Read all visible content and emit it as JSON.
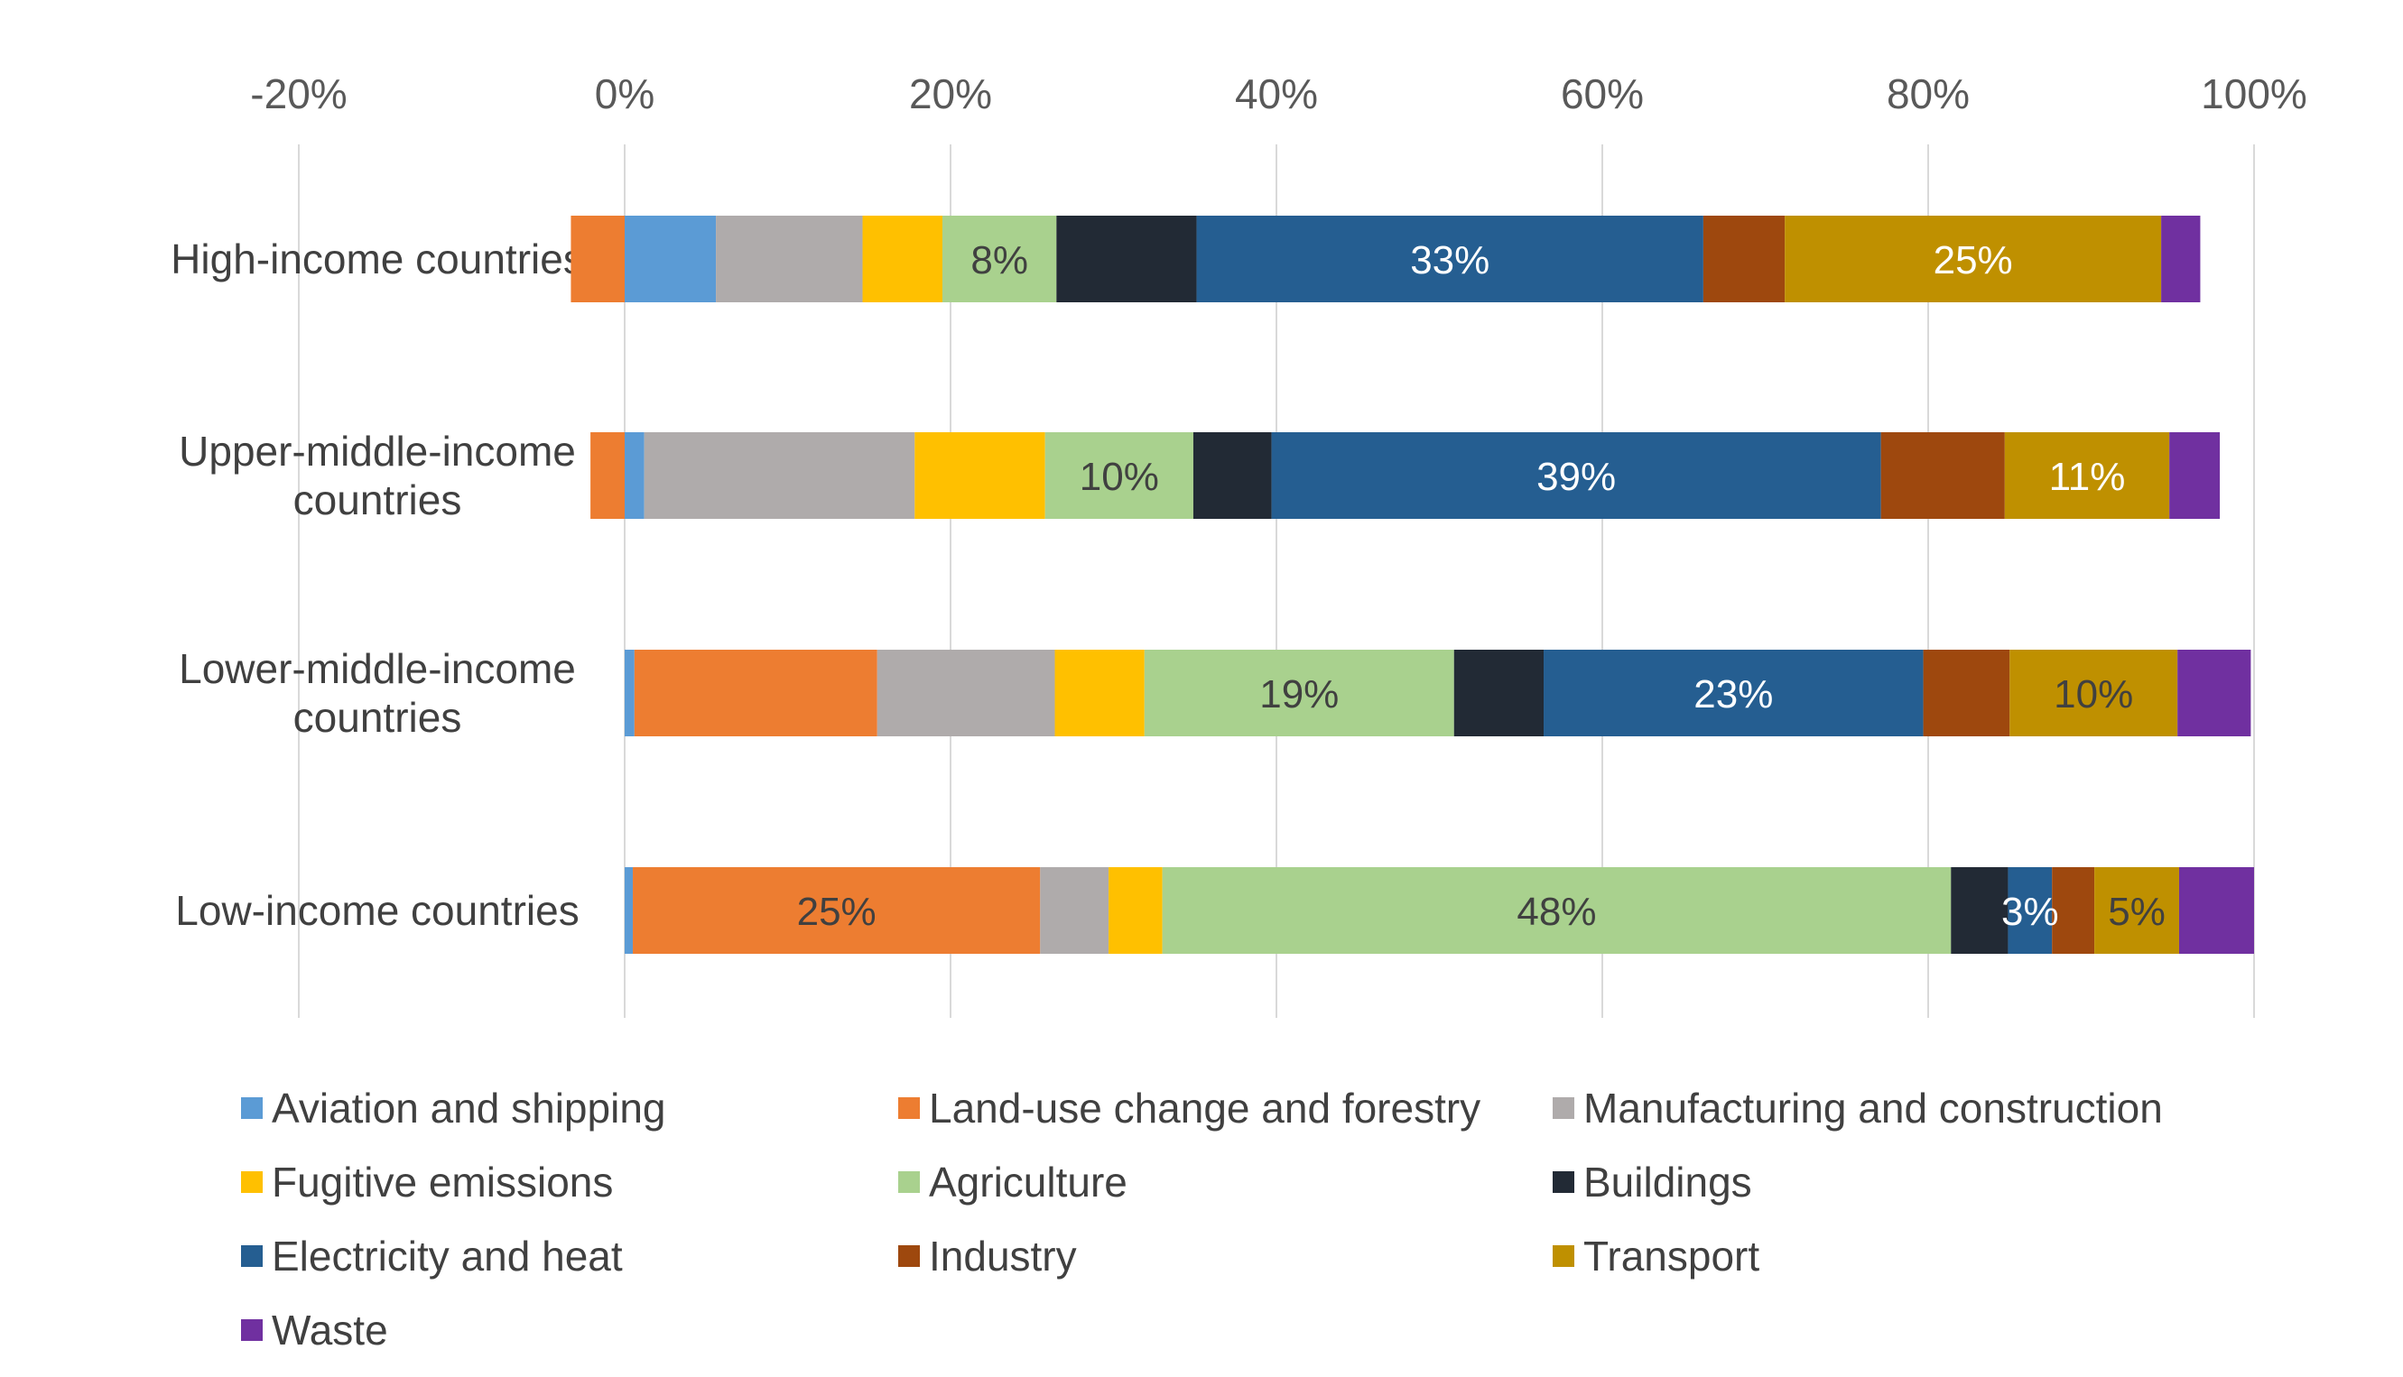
{
  "chart_data": {
    "type": "bar",
    "orientation": "horizontal",
    "stacked": true,
    "xlim": [
      -0.2,
      1.0
    ],
    "x_ticks": [
      -0.2,
      0,
      0.2,
      0.4,
      0.6,
      0.8,
      1.0
    ],
    "x_tick_labels": [
      "-20%",
      "0%",
      "20%",
      "40%",
      "60%",
      "80%",
      "100%"
    ],
    "x_axis_position": "top",
    "grid": true,
    "legend_position": "bottom",
    "categories": [
      [
        "High-income countries"
      ],
      [
        "Upper-middle-income",
        "countries"
      ],
      [
        "Lower-middle-income",
        "countries"
      ],
      [
        "Low-income countries"
      ]
    ],
    "series": [
      {
        "name": "Aviation and shipping",
        "color": "#5b9bd5",
        "values": [
          0.056,
          0.012,
          0.006,
          0.005
        ]
      },
      {
        "name": "Land-use change and forestry",
        "color": "#ed7d31",
        "values": [
          -0.033,
          -0.021,
          0.149,
          0.25
        ]
      },
      {
        "name": "Manufacturing and construction",
        "color": "#afabab",
        "values": [
          0.09,
          0.166,
          0.109,
          0.042
        ]
      },
      {
        "name": "Fugitive emissions",
        "color": "#ffc000",
        "values": [
          0.049,
          0.08,
          0.055,
          0.033
        ]
      },
      {
        "name": "Agriculture",
        "color": "#a9d18e",
        "values": [
          0.07,
          0.091,
          0.19,
          0.484
        ]
      },
      {
        "name": "Buildings",
        "color": "#222a35",
        "values": [
          0.086,
          0.048,
          0.055,
          0.035
        ]
      },
      {
        "name": "Electricity and heat",
        "color": "#255e91",
        "values": [
          0.311,
          0.374,
          0.233,
          0.027
        ]
      },
      {
        "name": "Industry",
        "color": "#9e480e",
        "values": [
          0.05,
          0.076,
          0.053,
          0.026
        ]
      },
      {
        "name": "Transport",
        "color": "#bf9000",
        "values": [
          0.231,
          0.101,
          0.103,
          0.052
        ]
      },
      {
        "name": "Waste",
        "color": "#7030a0",
        "values": [
          0.024,
          0.031,
          0.045,
          0.046
        ]
      }
    ],
    "data_labels": [
      {
        "category": 0,
        "series": "Agriculture",
        "text": "8%"
      },
      {
        "category": 0,
        "series": "Electricity and heat",
        "text": "33%"
      },
      {
        "category": 0,
        "series": "Transport",
        "text": "25%"
      },
      {
        "category": 1,
        "series": "Agriculture",
        "text": "10%"
      },
      {
        "category": 1,
        "series": "Electricity and heat",
        "text": "39%"
      },
      {
        "category": 1,
        "series": "Transport",
        "text": "11%"
      },
      {
        "category": 2,
        "series": "Agriculture",
        "text": "19%"
      },
      {
        "category": 2,
        "series": "Electricity and heat",
        "text": "23%"
      },
      {
        "category": 2,
        "series": "Transport",
        "text": "10%"
      },
      {
        "category": 3,
        "series": "Land-use change and forestry",
        "text": "25%"
      },
      {
        "category": 3,
        "series": "Agriculture",
        "text": "48%"
      },
      {
        "category": 3,
        "series": "Electricity and heat",
        "text": "3%"
      },
      {
        "category": 3,
        "series": "Transport",
        "text": "5%"
      }
    ]
  }
}
